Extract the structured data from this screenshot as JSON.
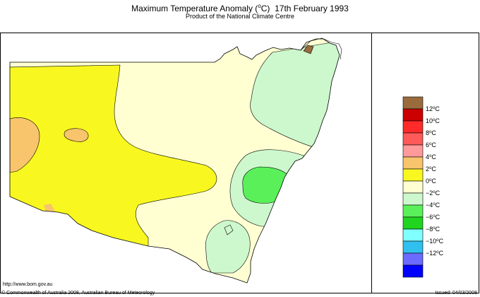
{
  "title": {
    "prefix": "Maximum Temperature Anomaly (",
    "degree_sup": "o",
    "unit_suffix": "C)",
    "date": "17th February 1993"
  },
  "subtitle": "Product of the National Climate Centre",
  "legend": [
    {
      "label": "",
      "color": "#9a6b3c"
    },
    {
      "label": "12",
      "color": "#cc0000"
    },
    {
      "label": "10",
      "color": "#ff2a2a"
    },
    {
      "label": "8",
      "color": "#ff5a5a"
    },
    {
      "label": "6",
      "color": "#ff9a9a"
    },
    {
      "label": "4",
      "color": "#f8c46c"
    },
    {
      "label": "2",
      "color": "#f8f820"
    },
    {
      "label": "0",
      "color": "#ffffd2"
    },
    {
      "label": "−2",
      "color": "#cdf8cd"
    },
    {
      "label": "−4",
      "color": "#5af05a"
    },
    {
      "label": "−6",
      "color": "#20d420"
    },
    {
      "label": "−8",
      "color": "#80ffff"
    },
    {
      "label": "−10",
      "color": "#30c0f0"
    },
    {
      "label": "−12",
      "color": "#6b6bff"
    },
    {
      "label": "",
      "color": "#0000ff"
    }
  ],
  "legend_unit": "C",
  "legend_degree": "o",
  "footer": {
    "url": "http://www.bom.gov.au",
    "copyright": "© Commonwealth of Australia 2008, Australian Bureau of Meteorology",
    "issued": "Issued: 04/03/2008"
  }
}
